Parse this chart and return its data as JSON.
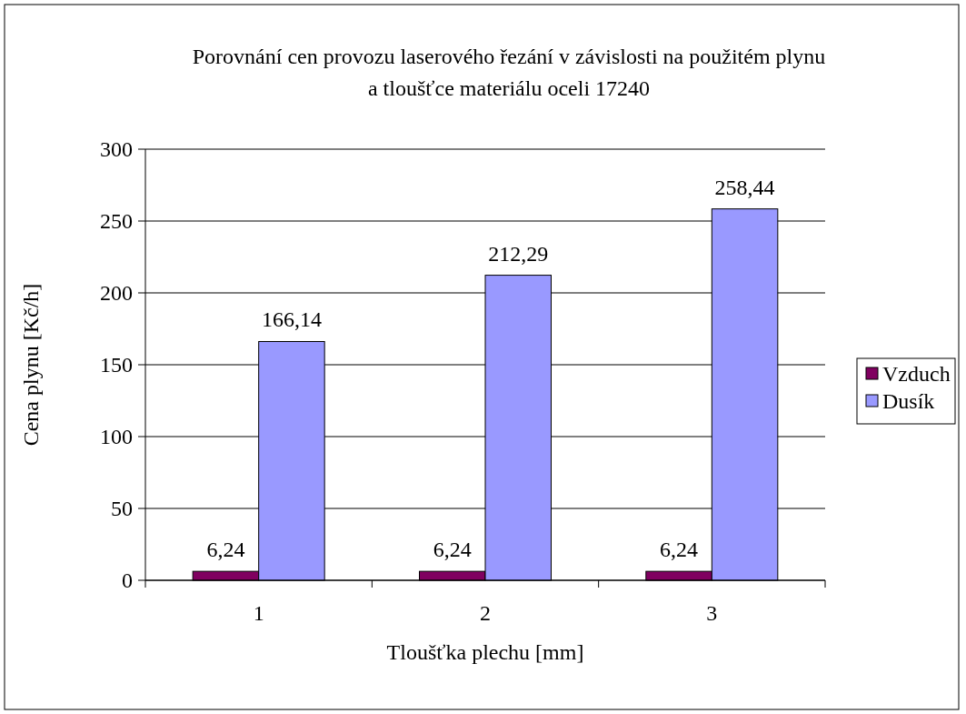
{
  "chart_data": {
    "type": "bar",
    "title": "Porovnání cen provozu laserového řezání v závislosti na použitém plynu a tloušťce materiálu oceli 17240",
    "xlabel": "Tloušťka plechu [mm]",
    "ylabel": "Cena plynu [Kč/h]",
    "categories": [
      "1",
      "2",
      "3"
    ],
    "series": [
      {
        "name": "Vzduch",
        "color": "#800060",
        "values": [
          6.24,
          6.24,
          6.24
        ],
        "value_labels": [
          "6,24",
          "6,24",
          "6,24"
        ]
      },
      {
        "name": "Dusík",
        "color": "#9999ff",
        "values": [
          166.14,
          212.29,
          258.44
        ],
        "value_labels": [
          "166,14",
          "212,29",
          "258,44"
        ]
      }
    ],
    "ylim": [
      0,
      300
    ],
    "yticks": [
      0,
      50,
      100,
      150,
      200,
      250,
      300
    ],
    "grid": "y",
    "legend": "right"
  }
}
